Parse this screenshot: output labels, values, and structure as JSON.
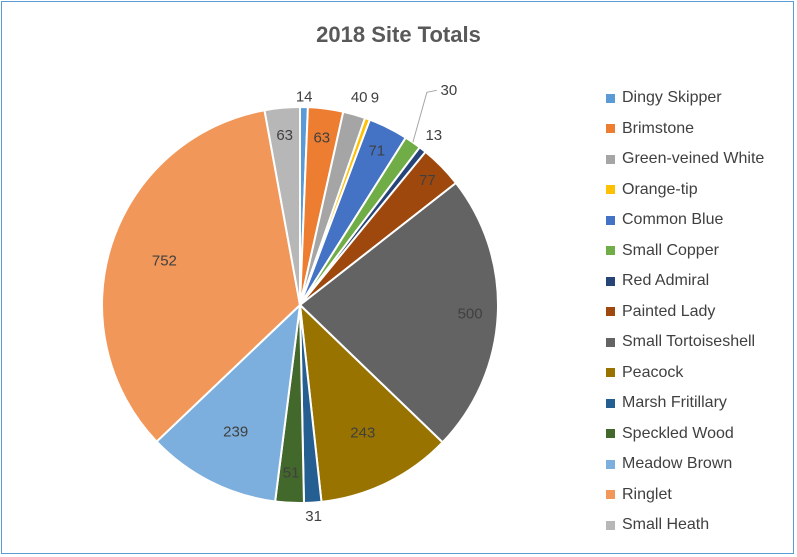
{
  "chart_data": {
    "type": "pie",
    "title": "2018 Site Totals",
    "legend_position": "right",
    "categories": [
      "Dingy Skipper",
      "Brimstone",
      "Green-veined White",
      "Orange-tip",
      "Common Blue",
      "Small Copper",
      "Red Admiral",
      "Painted Lady",
      "Small Tortoiseshell",
      "Peacock",
      "Marsh Fritillary",
      "Speckled Wood",
      "Meadow Brown",
      "Ringlet",
      "Small Heath"
    ],
    "values": [
      14,
      63,
      40,
      9,
      71,
      30,
      13,
      77,
      500,
      243,
      31,
      51,
      239,
      752,
      63
    ],
    "colors": [
      "#5b9bd5",
      "#ed7d31",
      "#a5a5a5",
      "#ffc000",
      "#4472c4",
      "#70ad47",
      "#264478",
      "#9e480e",
      "#636363",
      "#997300",
      "#255e91",
      "#43682b",
      "#7cafdd",
      "#f1975a",
      "#b7b7b7"
    ]
  }
}
